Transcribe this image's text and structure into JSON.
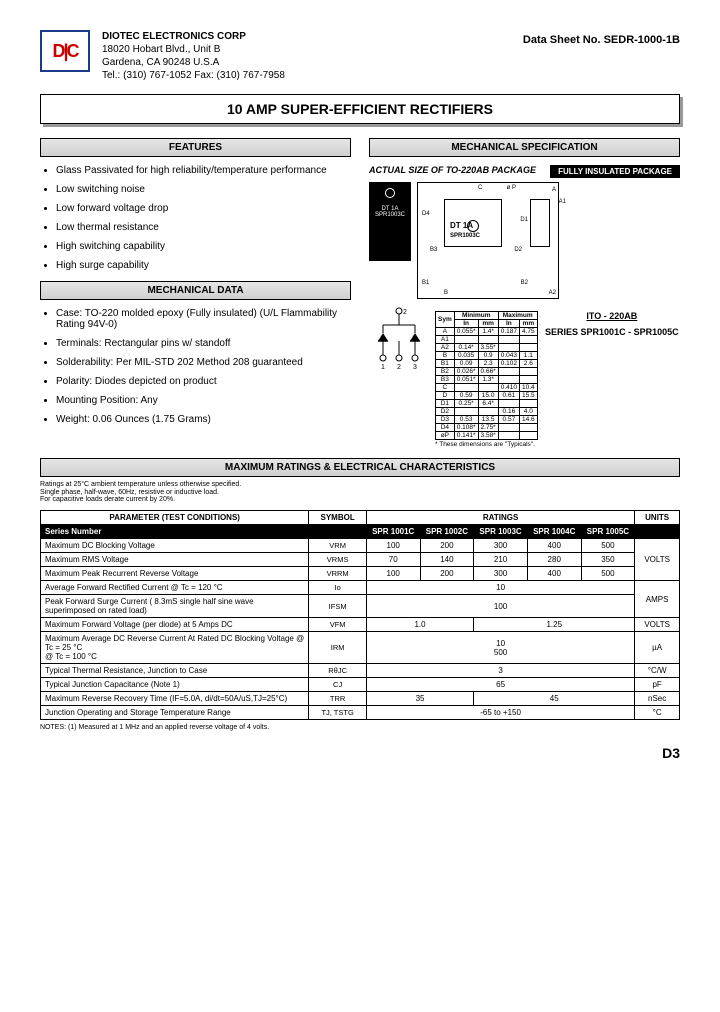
{
  "header": {
    "company": "DIOTEC  ELECTRONICS  CORP",
    "addr1": "18020 Hobart Blvd.,  Unit B",
    "addr2": "Gardena, CA  90248   U.S.A",
    "tel": "Tel.:  (310) 767-1052    Fax:  (310) 767-7958",
    "datasheet": "Data Sheet No.  SEDR-1000-1B"
  },
  "title": "10 AMP SUPER-EFFICIENT RECTIFIERS",
  "sections": {
    "features": "FEATURES",
    "mechspec": "MECHANICAL  SPECIFICATION",
    "mechdata": "MECHANICAL DATA",
    "maxratings": "MAXIMUM RATINGS & ELECTRICAL CHARACTERISTICS"
  },
  "features": [
    "Glass Passivated for high reliability/temperature performance",
    "Low switching noise",
    "Low forward voltage drop",
    "Low thermal resistance",
    "High switching capability",
    "High surge capability"
  ],
  "mechdata": [
    "Case: TO-220 molded epoxy (Fully insulated) (U/L Flammability Rating 94V-0)",
    "Terminals: Rectangular pins w/ standoff",
    "Solderability: Per MIL-STD 202 Method 208 guaranteed",
    "Polarity: Diodes depicted on product",
    "Mounting Position: Any",
    "Weight: 0.06 Ounces (1.75 Grams)"
  ],
  "pkg": {
    "actual": "ACTUAL SIZE OF TO-220AB PACKAGE",
    "insulated": "FULLY INSULATED PACKAGE",
    "marking1": "DT 1A",
    "marking2": "SPR1003C",
    "ito": "ITO - 220AB",
    "series": "SERIES SPR1001C - SPR1005C",
    "typnote": "* These dimensions are \"Typicals\"."
  },
  "dimtbl": {
    "hdr": [
      "Sym",
      "Minimum",
      "",
      "Maximum",
      ""
    ],
    "sub": [
      "",
      "In",
      "mm",
      "In",
      "mm"
    ],
    "rows": [
      [
        "A",
        "0.055*",
        "1.4*",
        "0.187",
        "4.75"
      ],
      [
        "A1",
        "",
        "",
        "",
        ""
      ],
      [
        "A2",
        "0.14*",
        "3.55*",
        "",
        ""
      ],
      [
        "B",
        "0.035",
        "0.9",
        "0.043",
        "1.1"
      ],
      [
        "B1",
        "0.09",
        "2.3",
        "0.102",
        "2.6"
      ],
      [
        "B2",
        "0.026*",
        "0.66*",
        "",
        ""
      ],
      [
        "B3",
        "0.051*",
        "1.3*",
        "",
        ""
      ],
      [
        "C",
        "",
        "",
        "0.410",
        "10.4"
      ],
      [
        "D",
        "0.59",
        "15.0",
        "0.61",
        "15.5"
      ],
      [
        "D1",
        "0.25*",
        "6.4*",
        "",
        ""
      ],
      [
        "D2",
        "",
        "",
        "0.16",
        "4.0"
      ],
      [
        "D3",
        "0.53",
        "13.5",
        "0.57",
        "14.6"
      ],
      [
        "D4",
        "0.108*",
        "2.75*",
        "",
        ""
      ],
      [
        "øP",
        "0.141*",
        "3.58*",
        "",
        ""
      ]
    ]
  },
  "ratings_notes": "Ratings at 25°C ambient temperature unless otherwise specified.\nSingle phase, half-wave, 60Hz, resistive or inductive load.\nFor capacitive loads derate current by 20%.",
  "ratings": {
    "cols": {
      "param": "PARAMETER (TEST CONDITIONS)",
      "symbol": "SYMBOL",
      "ratings": "RATINGS",
      "units": "UNITS"
    },
    "series_label": "Series Number",
    "series": [
      "SPR 1001C",
      "SPR 1002C",
      "SPR 1003C",
      "SPR 1004C",
      "SPR 1005C"
    ],
    "rows": [
      {
        "p": "Maximum DC Blocking Voltage",
        "s": "VRM",
        "v": [
          "100",
          "200",
          "300",
          "400",
          "500"
        ],
        "u": "VOLTS",
        "uRowspan": 3
      },
      {
        "p": "Maximum RMS Voltage",
        "s": "VRMS",
        "v": [
          "70",
          "140",
          "210",
          "280",
          "350"
        ]
      },
      {
        "p": "Maximum Peak Recurrent Reverse Voltage",
        "s": "VRRM",
        "v": [
          "100",
          "200",
          "300",
          "400",
          "500"
        ]
      },
      {
        "p": "Average Forward Rectified Current @ Tc = 120 °C",
        "s": "Io",
        "merge": "10",
        "u": "AMPS",
        "uRowspan": 2
      },
      {
        "p": "Peak Forward Surge Current ( 8.3mS single half sine wave superimposed on rated load)",
        "s": "IFSM",
        "merge": "100"
      },
      {
        "p": "Maximum Forward Voltage (per diode) at 5 Amps  DC",
        "s": "VFM",
        "split": [
          "1.0",
          "1.25"
        ],
        "u": "VOLTS"
      },
      {
        "p": "Maximum Average DC Reverse Current At Rated DC Blocking Voltage     @ Tc =   25 °C\n                                                                              @ Tc = 100 °C",
        "s": "IRM",
        "stack": [
          "10",
          "500"
        ],
        "u": "µA"
      },
      {
        "p": "Typical Thermal Resistance, Junction to Case",
        "s": "RθJC",
        "merge": "3",
        "u": "°C/W"
      },
      {
        "p": "Typical Junction Capacitance (Note 1)",
        "s": "CJ",
        "merge": "65",
        "u": "pF"
      },
      {
        "p": "Maximum Reverse Recovery Time (IF=5.0A, di/dt=50A/uS,TJ=25°C)",
        "s": "TRR",
        "split": [
          "35",
          "45"
        ],
        "u": "nSec"
      },
      {
        "p": "Junction Operating and Storage Temperature Range",
        "s": "TJ, TSTG",
        "merge": "-65 to +150",
        "u": "°C"
      }
    ]
  },
  "footnote": "NOTES:   (1)  Measured at 1 MHz and an applied reverse voltage of 4 volts.",
  "page": "D3",
  "colors": {
    "logo_border": "#1a3a8a",
    "logo_red": "#c00"
  }
}
